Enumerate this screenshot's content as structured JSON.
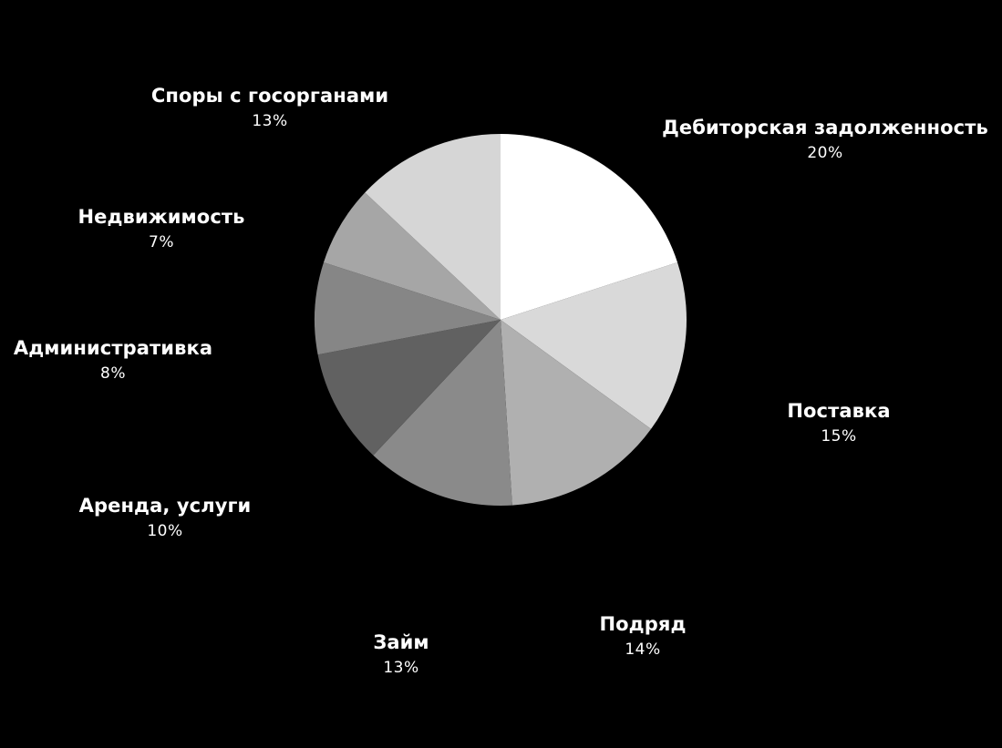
{
  "chart_data": {
    "type": "pie",
    "title": "",
    "start_angle_deg": 0,
    "direction": "clockwise",
    "value_suffix": "%",
    "background": "#000000",
    "label_color": "#ffffff",
    "slices": [
      {
        "label": "Дебиторская задолженность",
        "value": 20,
        "color": "#ffffff"
      },
      {
        "label": "Поставка",
        "value": 15,
        "color": "#d9d9d9"
      },
      {
        "label": "Подряд",
        "value": 14,
        "color": "#b0b0b0"
      },
      {
        "label": "Займ",
        "value": 13,
        "color": "#8a8a8a"
      },
      {
        "label": "Аренда, услуги",
        "value": 10,
        "color": "#616161"
      },
      {
        "label": "Административка",
        "value": 8,
        "color": "#868686"
      },
      {
        "label": "Недвижимость",
        "value": 7,
        "color": "#a6a6a6"
      },
      {
        "label": "Споры с госорганами",
        "value": 13,
        "color": "#d6d6d6"
      }
    ]
  }
}
